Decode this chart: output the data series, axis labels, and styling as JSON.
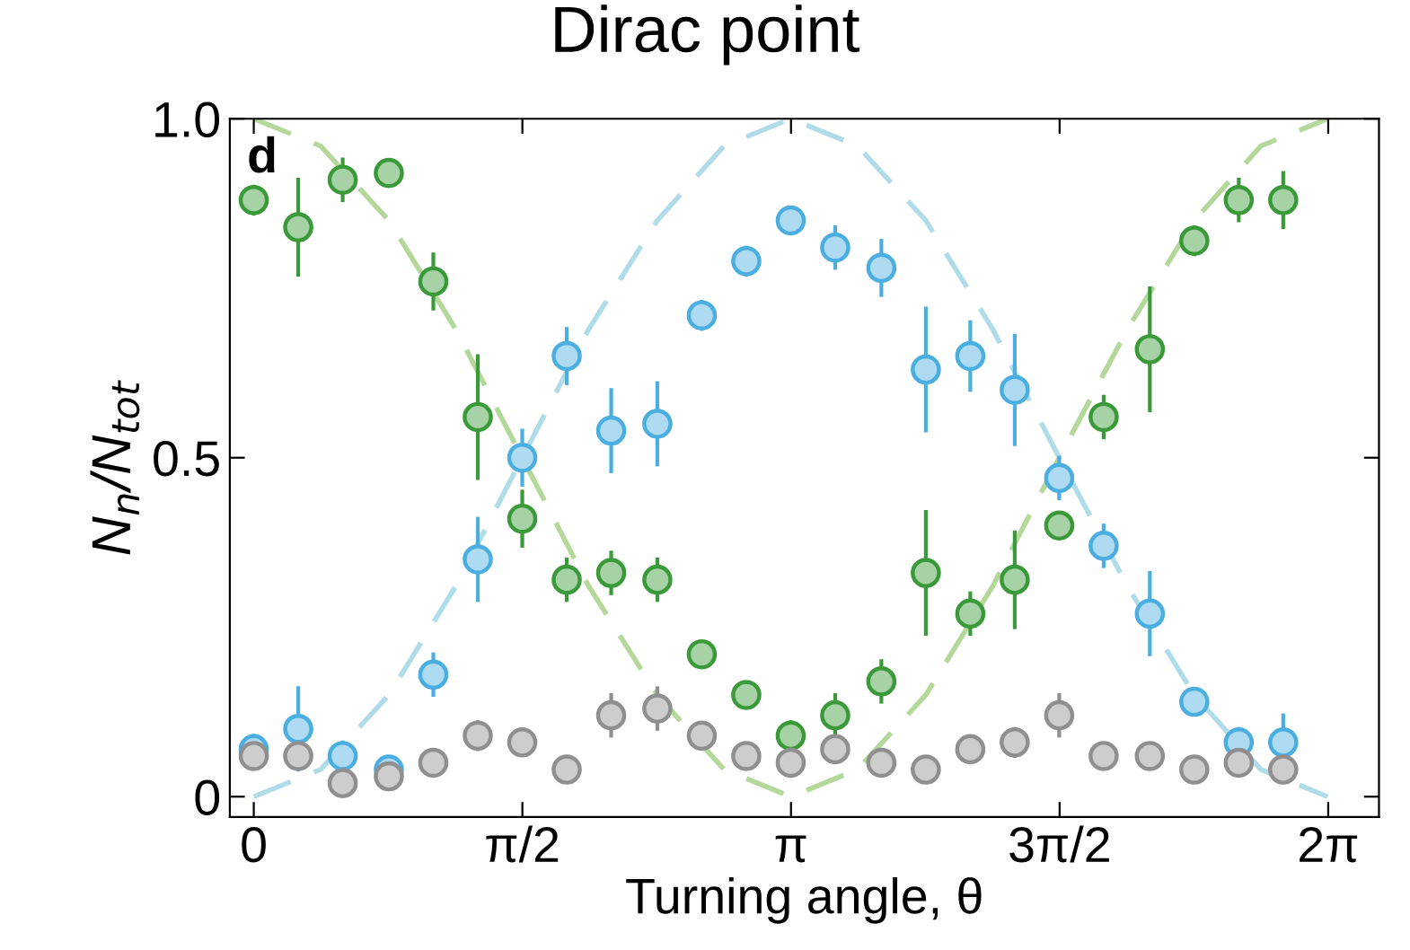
{
  "chart_data": {
    "type": "scatter",
    "title": "Dirac point",
    "xlabel": "Turning angle, θ",
    "ylabel": "N$_{n}$/N$_{tot}$",
    "annotations": [
      "d"
    ],
    "x": [
      0,
      0.26,
      0.52,
      0.79,
      1.05,
      1.31,
      1.57,
      1.83,
      2.09,
      2.36,
      2.62,
      2.88,
      3.14,
      3.4,
      3.67,
      3.93,
      4.19,
      4.45,
      4.71,
      4.97,
      5.24,
      5.5,
      5.76,
      6.02
    ],
    "series": [
      {
        "type": "line",
        "color": "#b4d89a",
        "line_style": "dashed",
        "marker": "none",
        "x": [
          0,
          0.39,
          0.79,
          1.18,
          1.57,
          1.96,
          2.36,
          2.75,
          3.14,
          3.53,
          3.93,
          4.32,
          4.71,
          5.11,
          5.5,
          5.89,
          6.28
        ],
        "values": [
          1,
          0.96,
          0.85,
          0.69,
          0.5,
          0.31,
          0.15,
          0.04,
          0,
          0.04,
          0.15,
          0.31,
          0.5,
          0.69,
          0.85,
          0.96,
          1
        ]
      },
      {
        "type": "line",
        "color": "#b0dcea",
        "line_style": "dashed",
        "marker": "none",
        "x": [
          0,
          0.39,
          0.79,
          1.18,
          1.57,
          1.96,
          2.36,
          2.75,
          3.14,
          3.53,
          3.93,
          4.32,
          4.71,
          5.11,
          5.5,
          5.89,
          6.28
        ],
        "values": [
          0,
          0.04,
          0.15,
          0.31,
          0.5,
          0.69,
          0.85,
          0.96,
          1,
          0.96,
          0.85,
          0.69,
          0.5,
          0.31,
          0.15,
          0.04,
          0
        ]
      },
      {
        "color": "#4aaee0",
        "values": [
          0.07,
          0.1,
          0.06,
          0.04,
          0.18,
          0.35,
          0.5,
          0.65,
          0.54,
          0.55,
          0.71,
          0.79,
          0.85,
          0.81,
          0.78,
          0.63,
          0.65,
          0.6,
          0.47,
          0.37,
          0.27,
          0.14,
          0.08,
          0.08
        ],
        "errors": [
          0.02,
          0.06,
          0.02,
          null,
          0.03,
          0.06,
          0.04,
          0.04,
          0.06,
          0.06,
          0.02,
          0.02,
          null,
          0.03,
          0.04,
          0.09,
          0.05,
          0.08,
          0.03,
          0.03,
          0.06,
          null,
          0.02,
          0.04
        ]
      },
      {
        "color": "#3a9a3a",
        "values": [
          0.88,
          0.84,
          0.91,
          0.92,
          0.76,
          0.56,
          0.41,
          0.32,
          0.33,
          0.32,
          0.21,
          0.15,
          0.09,
          0.12,
          0.17,
          0.33,
          0.27,
          0.32,
          0.4,
          0.56,
          0.66,
          0.82,
          0.88,
          0.88
        ],
        "errors": [
          0.02,
          0.07,
          0.03,
          null,
          0.04,
          0.09,
          0.04,
          0.03,
          0.03,
          0.03,
          null,
          null,
          0.02,
          0.03,
          0.03,
          0.09,
          0.03,
          0.07,
          null,
          0.03,
          0.09,
          0.02,
          0.03,
          0.04
        ]
      },
      {
        "color": "#8f8f8f",
        "values": [
          0.06,
          0.06,
          0.02,
          0.03,
          0.05,
          0.09,
          0.08,
          0.04,
          0.12,
          0.13,
          0.09,
          0.06,
          0.05,
          0.07,
          0.05,
          0.04,
          0.07,
          0.08,
          0.12,
          0.06,
          0.06,
          0.04,
          0.05,
          0.04
        ],
        "errors": [
          null,
          null,
          null,
          null,
          null,
          0.02,
          null,
          null,
          0.03,
          0.03,
          null,
          null,
          null,
          null,
          null,
          null,
          null,
          0.02,
          0.03,
          null,
          null,
          null,
          null,
          null
        ]
      }
    ],
    "marker": "circle",
    "xlim": [
      -0.14,
      6.58
    ],
    "ylim": [
      -0.03,
      1.0
    ],
    "xticks": [
      0,
      {
        "value": 1.5708,
        "label": "π/2"
      },
      {
        "value": 3.1416,
        "label": "π"
      },
      {
        "value": 4.7124,
        "label": "3π/2"
      },
      {
        "value": 6.2832,
        "label": "2π"
      }
    ],
    "yticks": [
      0,
      0.5,
      {
        "value": 1.0,
        "label": "1.0"
      }
    ],
    "grid": false,
    "legend": false
  }
}
